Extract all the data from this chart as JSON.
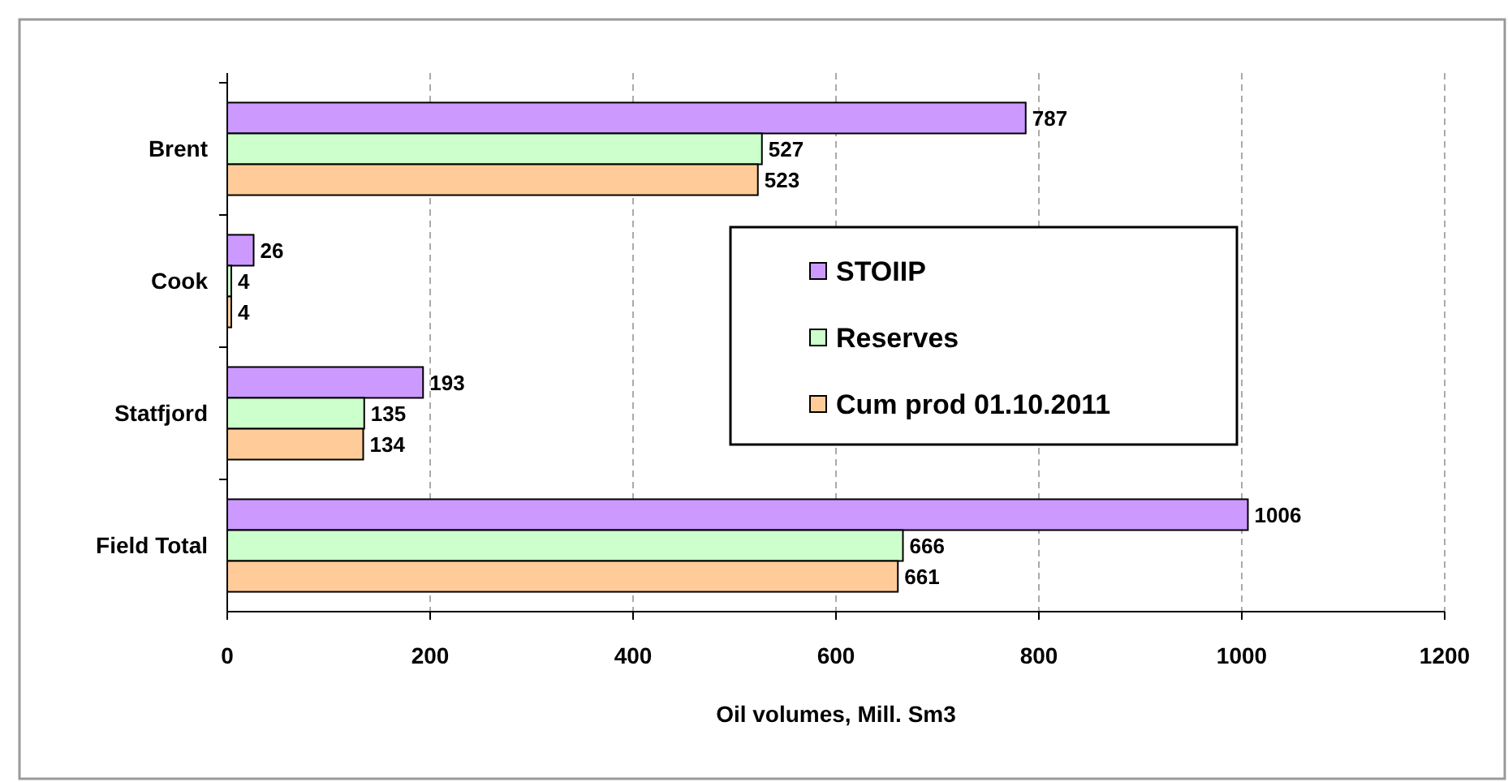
{
  "chart_data": {
    "type": "bar",
    "orientation": "horizontal",
    "xlabel": "Oil volumes, Mill. Sm3",
    "categories": [
      "Brent",
      "Cook",
      "Statfjord",
      "Field Total"
    ],
    "series": [
      {
        "name": "STOIIP",
        "color": "#cc99ff",
        "values": [
          787,
          26,
          193,
          1006
        ]
      },
      {
        "name": "Reserves",
        "color": "#ccffcc",
        "values": [
          527,
          4,
          135,
          666
        ]
      },
      {
        "name": "Cum prod 01.10.2011",
        "color": "#ffcc99",
        "values": [
          523,
          4,
          134,
          661
        ]
      }
    ],
    "xlim": [
      0,
      1200
    ],
    "xticks": [
      0,
      200,
      400,
      600,
      800,
      1000,
      1200
    ],
    "grid": "x",
    "legend": "right",
    "data_labels": true
  }
}
